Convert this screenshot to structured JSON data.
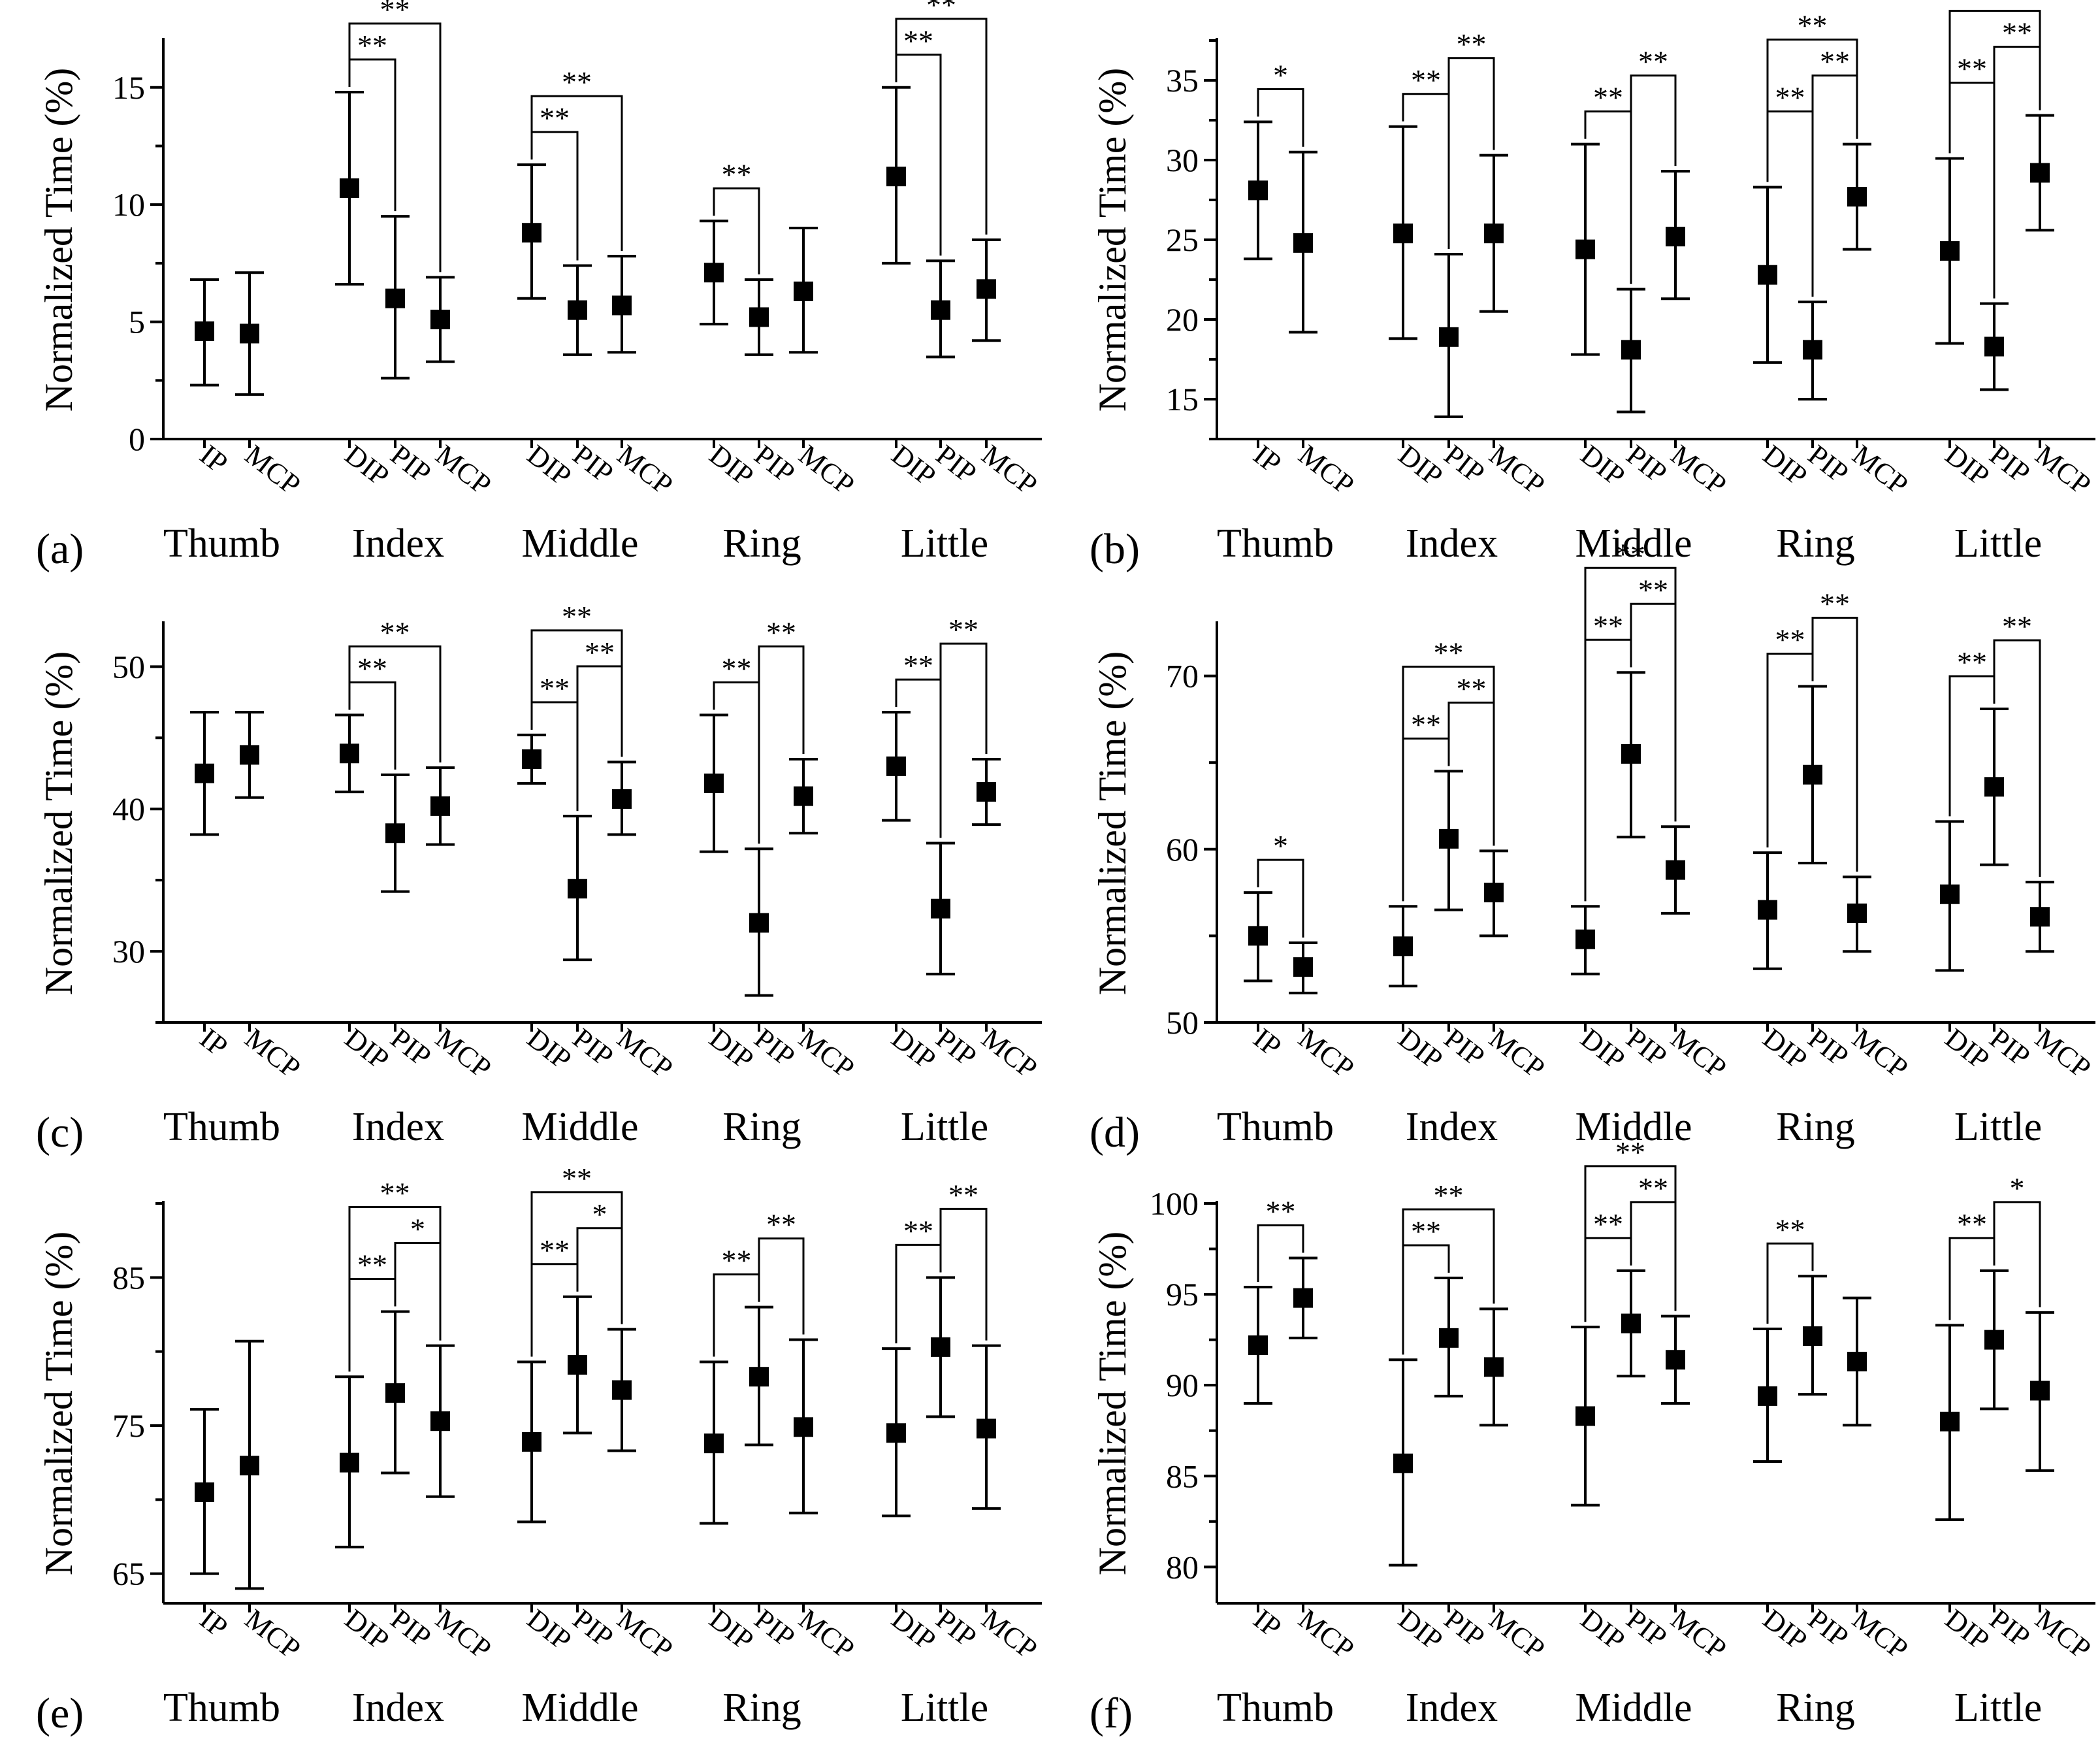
{
  "chart_data": [
    {
      "type": "errorbar",
      "panel": "(a)",
      "ylabel": "Normalized Time (%)",
      "ylim": [
        0,
        17
      ],
      "yticks": [
        0,
        5,
        10,
        15
      ],
      "groups": [
        {
          "name": "Thumb",
          "joints": [
            "IP",
            "MCP"
          ],
          "means": [
            4.6,
            4.5
          ],
          "lower": [
            2.3,
            1.9
          ],
          "upper": [
            6.8,
            7.1
          ]
        },
        {
          "name": "Index",
          "joints": [
            "DIP",
            "PIP",
            "MCP"
          ],
          "means": [
            10.7,
            6.0,
            5.1
          ],
          "lower": [
            6.6,
            2.6,
            3.3
          ],
          "upper": [
            14.8,
            9.5,
            6.9
          ]
        },
        {
          "name": "Middle",
          "joints": [
            "DIP",
            "PIP",
            "MCP"
          ],
          "means": [
            8.8,
            5.5,
            5.7
          ],
          "lower": [
            6.0,
            3.6,
            3.7
          ],
          "upper": [
            11.7,
            7.4,
            7.8
          ]
        },
        {
          "name": "Ring",
          "joints": [
            "DIP",
            "PIP",
            "MCP"
          ],
          "means": [
            7.1,
            5.2,
            6.3
          ],
          "lower": [
            4.9,
            3.6,
            3.7
          ],
          "upper": [
            9.3,
            6.8,
            9.0
          ]
        },
        {
          "name": "Little",
          "joints": [
            "DIP",
            "PIP",
            "MCP"
          ],
          "means": [
            11.2,
            5.5,
            6.4
          ],
          "lower": [
            7.5,
            3.5,
            4.2
          ],
          "upper": [
            15.0,
            7.6,
            8.5
          ]
        }
      ],
      "significance": [
        {
          "group": 1,
          "from": 0,
          "to": 1,
          "label": "**"
        },
        {
          "group": 1,
          "from": 0,
          "to": 2,
          "label": "**"
        },
        {
          "group": 2,
          "from": 0,
          "to": 1,
          "label": "**"
        },
        {
          "group": 2,
          "from": 0,
          "to": 2,
          "label": "**"
        },
        {
          "group": 3,
          "from": 0,
          "to": 1,
          "label": "**"
        },
        {
          "group": 4,
          "from": 0,
          "to": 1,
          "label": "**"
        },
        {
          "group": 4,
          "from": 0,
          "to": 2,
          "label": "**"
        }
      ]
    },
    {
      "type": "errorbar",
      "panel": "(b)",
      "ylabel": "Normalized Time (%)",
      "ylim": [
        12.5,
        37.5
      ],
      "yticks": [
        15,
        20,
        25,
        30,
        35
      ],
      "groups": [
        {
          "name": "Thumb",
          "joints": [
            "IP",
            "MCP"
          ],
          "means": [
            28.1,
            24.8
          ],
          "lower": [
            23.8,
            19.2
          ],
          "upper": [
            32.4,
            30.5
          ]
        },
        {
          "name": "Index",
          "joints": [
            "DIP",
            "PIP",
            "MCP"
          ],
          "means": [
            25.4,
            18.9,
            25.4
          ],
          "lower": [
            18.8,
            13.9,
            20.5
          ],
          "upper": [
            32.1,
            24.1,
            30.3
          ]
        },
        {
          "name": "Middle",
          "joints": [
            "DIP",
            "PIP",
            "MCP"
          ],
          "means": [
            24.4,
            18.1,
            25.2
          ],
          "lower": [
            17.8,
            14.2,
            21.3
          ],
          "upper": [
            31.0,
            21.9,
            29.3
          ]
        },
        {
          "name": "Ring",
          "joints": [
            "DIP",
            "PIP",
            "MCP"
          ],
          "means": [
            22.8,
            18.1,
            27.7
          ],
          "lower": [
            17.3,
            15.0,
            24.4
          ],
          "upper": [
            28.3,
            21.1,
            31.0
          ]
        },
        {
          "name": "Little",
          "joints": [
            "DIP",
            "PIP",
            "MCP"
          ],
          "means": [
            24.3,
            18.3,
            29.2
          ],
          "lower": [
            18.5,
            15.6,
            25.6
          ],
          "upper": [
            30.1,
            21.0,
            32.8
          ]
        }
      ],
      "significance": [
        {
          "group": 0,
          "from": 0,
          "to": 1,
          "label": "*"
        },
        {
          "group": 1,
          "from": 1,
          "to": 0,
          "label": "**"
        },
        {
          "group": 1,
          "from": 1,
          "to": 2,
          "label": "**"
        },
        {
          "group": 2,
          "from": 1,
          "to": 0,
          "label": "**"
        },
        {
          "group": 2,
          "from": 1,
          "to": 2,
          "label": "**"
        },
        {
          "group": 3,
          "from": 1,
          "to": 0,
          "label": "**"
        },
        {
          "group": 3,
          "from": 1,
          "to": 2,
          "label": "**"
        },
        {
          "group": 3,
          "from": 0,
          "to": 2,
          "label": "**"
        },
        {
          "group": 4,
          "from": 1,
          "to": 0,
          "label": "**"
        },
        {
          "group": 4,
          "from": 1,
          "to": 2,
          "label": "**"
        },
        {
          "group": 4,
          "from": 0,
          "to": 2,
          "label": "**"
        }
      ]
    },
    {
      "type": "errorbar",
      "panel": "(c)",
      "ylabel": "Normalized Time (%)",
      "ylim": [
        25,
        53
      ],
      "yticks": [
        30,
        40,
        50
      ],
      "groups": [
        {
          "name": "Thumb",
          "joints": [
            "IP",
            "MCP"
          ],
          "means": [
            42.5,
            43.8
          ],
          "lower": [
            38.2,
            40.8
          ],
          "upper": [
            46.8,
            46.8
          ]
        },
        {
          "name": "Index",
          "joints": [
            "DIP",
            "PIP",
            "MCP"
          ],
          "means": [
            43.9,
            38.3,
            40.2
          ],
          "lower": [
            41.2,
            34.2,
            37.5
          ],
          "upper": [
            46.6,
            42.4,
            42.9
          ]
        },
        {
          "name": "Middle",
          "joints": [
            "DIP",
            "PIP",
            "MCP"
          ],
          "means": [
            43.5,
            34.4,
            40.7
          ],
          "lower": [
            41.8,
            29.4,
            38.2
          ],
          "upper": [
            45.2,
            39.5,
            43.3
          ]
        },
        {
          "name": "Ring",
          "joints": [
            "DIP",
            "PIP",
            "MCP"
          ],
          "means": [
            41.8,
            32.0,
            40.9
          ],
          "lower": [
            37.0,
            26.9,
            38.3
          ],
          "upper": [
            46.6,
            37.2,
            43.5
          ]
        },
        {
          "name": "Little",
          "joints": [
            "DIP",
            "PIP",
            "MCP"
          ],
          "means": [
            43.0,
            33.0,
            41.2
          ],
          "lower": [
            39.2,
            28.4,
            38.9
          ],
          "upper": [
            46.8,
            37.6,
            43.5
          ]
        }
      ],
      "significance": [
        {
          "group": 1,
          "from": 0,
          "to": 1,
          "label": "**"
        },
        {
          "group": 1,
          "from": 0,
          "to": 2,
          "label": "**"
        },
        {
          "group": 2,
          "from": 0,
          "to": 1,
          "label": "**"
        },
        {
          "group": 2,
          "from": 1,
          "to": 2,
          "label": "**"
        },
        {
          "group": 2,
          "from": 0,
          "to": 2,
          "label": "**"
        },
        {
          "group": 3,
          "from": 1,
          "to": 0,
          "label": "**"
        },
        {
          "group": 3,
          "from": 1,
          "to": 2,
          "label": "**"
        },
        {
          "group": 4,
          "from": 1,
          "to": 0,
          "label": "**"
        },
        {
          "group": 4,
          "from": 1,
          "to": 2,
          "label": "**"
        }
      ]
    },
    {
      "type": "errorbar",
      "panel": "(d)",
      "ylabel": "Normalized Time (%)",
      "ylim": [
        50,
        73
      ],
      "yticks": [
        50,
        60,
        70
      ],
      "groups": [
        {
          "name": "Thumb",
          "joints": [
            "IP",
            "MCP"
          ],
          "means": [
            55.0,
            53.2
          ],
          "lower": [
            52.4,
            51.7
          ],
          "upper": [
            57.5,
            54.6
          ]
        },
        {
          "name": "Index",
          "joints": [
            "DIP",
            "PIP",
            "MCP"
          ],
          "means": [
            54.4,
            60.6,
            57.5
          ],
          "lower": [
            52.1,
            56.5,
            55.0
          ],
          "upper": [
            56.7,
            64.5,
            59.9
          ]
        },
        {
          "name": "Middle",
          "joints": [
            "DIP",
            "PIP",
            "MCP"
          ],
          "means": [
            54.8,
            65.5,
            58.8
          ],
          "lower": [
            52.8,
            60.7,
            56.3
          ],
          "upper": [
            56.7,
            70.2,
            61.3
          ]
        },
        {
          "name": "Ring",
          "joints": [
            "DIP",
            "PIP",
            "MCP"
          ],
          "means": [
            56.5,
            64.3,
            56.3
          ],
          "lower": [
            53.1,
            59.2,
            54.1
          ],
          "upper": [
            59.8,
            69.4,
            58.4
          ]
        },
        {
          "name": "Little",
          "joints": [
            "DIP",
            "PIP",
            "MCP"
          ],
          "means": [
            57.4,
            63.6,
            56.1
          ],
          "lower": [
            53.0,
            59.1,
            54.1
          ],
          "upper": [
            61.6,
            68.1,
            58.1
          ]
        }
      ],
      "significance": [
        {
          "group": 0,
          "from": 0,
          "to": 1,
          "label": "*"
        },
        {
          "group": 1,
          "from": 0,
          "to": 1,
          "label": "**"
        },
        {
          "group": 1,
          "from": 1,
          "to": 2,
          "label": "**"
        },
        {
          "group": 1,
          "from": 0,
          "to": 2,
          "label": "**"
        },
        {
          "group": 2,
          "from": 0,
          "to": 1,
          "label": "**"
        },
        {
          "group": 2,
          "from": 1,
          "to": 2,
          "label": "**"
        },
        {
          "group": 2,
          "from": 0,
          "to": 2,
          "label": "**"
        },
        {
          "group": 3,
          "from": 0,
          "to": 1,
          "label": "**"
        },
        {
          "group": 3,
          "from": 1,
          "to": 2,
          "label": "**"
        },
        {
          "group": 4,
          "from": 0,
          "to": 1,
          "label": "**"
        },
        {
          "group": 4,
          "from": 1,
          "to": 2,
          "label": "**"
        }
      ]
    },
    {
      "type": "errorbar",
      "panel": "(e)",
      "ylabel": "Normalized Time (%)",
      "ylim": [
        63,
        90
      ],
      "yticks": [
        65,
        75,
        85
      ],
      "groups": [
        {
          "name": "Thumb",
          "joints": [
            "IP",
            "MCP"
          ],
          "means": [
            70.5,
            72.3
          ],
          "lower": [
            65.0,
            64.0
          ],
          "upper": [
            76.1,
            80.7
          ]
        },
        {
          "name": "Index",
          "joints": [
            "DIP",
            "PIP",
            "MCP"
          ],
          "means": [
            72.5,
            77.2,
            75.3
          ],
          "lower": [
            66.8,
            71.8,
            70.2
          ],
          "upper": [
            78.3,
            82.7,
            80.4
          ]
        },
        {
          "name": "Middle",
          "joints": [
            "DIP",
            "PIP",
            "MCP"
          ],
          "means": [
            73.9,
            79.1,
            77.4
          ],
          "lower": [
            68.5,
            74.5,
            73.3
          ],
          "upper": [
            79.3,
            83.7,
            81.5
          ]
        },
        {
          "name": "Ring",
          "joints": [
            "DIP",
            "PIP",
            "MCP"
          ],
          "means": [
            73.8,
            78.3,
            74.9
          ],
          "lower": [
            68.4,
            73.7,
            69.1
          ],
          "upper": [
            79.3,
            83.0,
            80.8
          ]
        },
        {
          "name": "Little",
          "joints": [
            "DIP",
            "PIP",
            "MCP"
          ],
          "means": [
            74.5,
            80.3,
            74.8
          ],
          "lower": [
            68.9,
            75.6,
            69.4
          ],
          "upper": [
            80.2,
            85.0,
            80.4
          ]
        }
      ],
      "significance": [
        {
          "group": 1,
          "from": 0,
          "to": 1,
          "label": "**"
        },
        {
          "group": 1,
          "from": 1,
          "to": 2,
          "label": "*"
        },
        {
          "group": 1,
          "from": 0,
          "to": 2,
          "label": "**"
        },
        {
          "group": 2,
          "from": 0,
          "to": 1,
          "label": "**"
        },
        {
          "group": 2,
          "from": 1,
          "to": 2,
          "label": "*"
        },
        {
          "group": 2,
          "from": 0,
          "to": 2,
          "label": "**"
        },
        {
          "group": 3,
          "from": 1,
          "to": 0,
          "label": "**"
        },
        {
          "group": 3,
          "from": 1,
          "to": 2,
          "label": "**"
        },
        {
          "group": 4,
          "from": 1,
          "to": 0,
          "label": "**"
        },
        {
          "group": 4,
          "from": 1,
          "to": 2,
          "label": "**"
        }
      ]
    },
    {
      "type": "errorbar",
      "panel": "(f)",
      "ylabel": "Normalized Time (%)",
      "ylim": [
        78,
        100
      ],
      "yticks": [
        80,
        85,
        90,
        95,
        100
      ],
      "groups": [
        {
          "name": "Thumb",
          "joints": [
            "IP",
            "MCP"
          ],
          "means": [
            92.2,
            94.8
          ],
          "lower": [
            89.0,
            92.6
          ],
          "upper": [
            95.4,
            97.0
          ]
        },
        {
          "name": "Index",
          "joints": [
            "DIP",
            "PIP",
            "MCP"
          ],
          "means": [
            85.7,
            92.6,
            91.0
          ],
          "lower": [
            80.1,
            89.4,
            87.8
          ],
          "upper": [
            91.4,
            95.9,
            94.2
          ]
        },
        {
          "name": "Middle",
          "joints": [
            "DIP",
            "PIP",
            "MCP"
          ],
          "means": [
            88.3,
            93.4,
            91.4
          ],
          "lower": [
            83.4,
            90.5,
            89.0
          ],
          "upper": [
            93.2,
            96.3,
            93.8
          ]
        },
        {
          "name": "Ring",
          "joints": [
            "DIP",
            "PIP",
            "MCP"
          ],
          "means": [
            89.4,
            92.7,
            91.3
          ],
          "lower": [
            85.8,
            89.5,
            87.8
          ],
          "upper": [
            93.1,
            96.0,
            94.8
          ]
        },
        {
          "name": "Little",
          "joints": [
            "DIP",
            "PIP",
            "MCP"
          ],
          "means": [
            88.0,
            92.5,
            89.7
          ],
          "lower": [
            82.6,
            88.7,
            85.3
          ],
          "upper": [
            93.3,
            96.3,
            94.0
          ]
        }
      ],
      "significance": [
        {
          "group": 0,
          "from": 0,
          "to": 1,
          "label": "**"
        },
        {
          "group": 1,
          "from": 0,
          "to": 1,
          "label": "**"
        },
        {
          "group": 1,
          "from": 0,
          "to": 2,
          "label": "**"
        },
        {
          "group": 2,
          "from": 0,
          "to": 1,
          "label": "**"
        },
        {
          "group": 2,
          "from": 1,
          "to": 2,
          "label": "**"
        },
        {
          "group": 2,
          "from": 0,
          "to": 2,
          "label": "**"
        },
        {
          "group": 3,
          "from": 0,
          "to": 1,
          "label": "**"
        },
        {
          "group": 4,
          "from": 1,
          "to": 0,
          "label": "**"
        },
        {
          "group": 4,
          "from": 1,
          "to": 2,
          "label": "*"
        }
      ]
    }
  ]
}
